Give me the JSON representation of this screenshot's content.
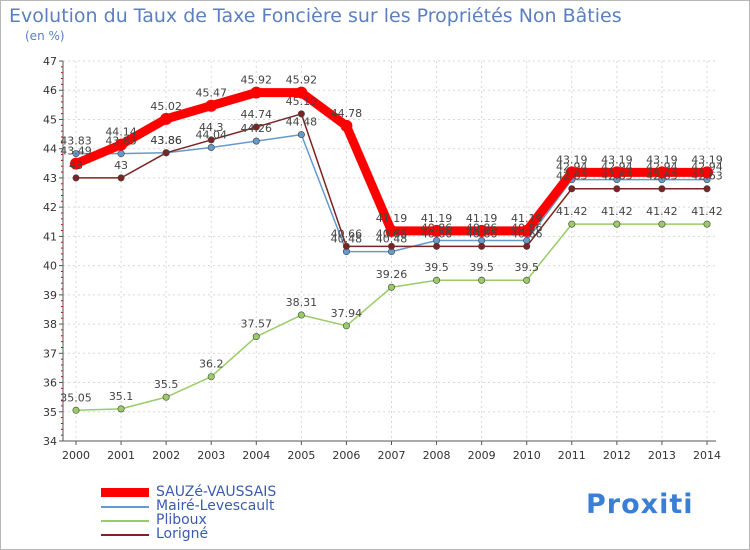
{
  "chart_data": {
    "type": "line",
    "title": "Evolution du Taux de Taxe Foncière sur les Propriétés Non Bâties",
    "subtitle": "(en %)",
    "ylim": [
      34,
      47
    ],
    "yticks": [
      "34",
      "35",
      "36",
      "37",
      "38",
      "39",
      "40",
      "41",
      "42",
      "43",
      "44",
      "45",
      "46",
      "47"
    ],
    "categories": [
      "2000",
      "2001",
      "2002",
      "2003",
      "2004",
      "2005",
      "2006",
      "2007",
      "2008",
      "2009",
      "2010",
      "2011",
      "2012",
      "2013",
      "2014"
    ],
    "series": [
      {
        "name": "SAUZé-VAUSSAIS",
        "color": "#ff0000",
        "values": [
          43.49,
          44.14,
          45.02,
          45.47,
          45.92,
          45.92,
          44.78,
          41.19,
          41.19,
          41.19,
          41.19,
          43.19,
          43.19,
          43.19,
          43.19
        ],
        "labels": [
          "43.49",
          "44.14",
          "45.02",
          "45.47",
          "45.92",
          "45.92",
          "44.78",
          "41.19",
          "41.19",
          "41.19",
          "41.19",
          "43.19",
          "43.19",
          "43.19",
          "43.19"
        ]
      },
      {
        "name": "Mairé-Levescault",
        "color": "#6699cc",
        "values": [
          43.83,
          43.83,
          43.86,
          44.04,
          44.26,
          44.48,
          40.48,
          40.48,
          40.86,
          40.86,
          40.86,
          42.94,
          42.94,
          42.94,
          42.94
        ],
        "labels": [
          "43.83",
          "43.83",
          "43.86",
          "44.04",
          "44.26",
          "44.48",
          "40.48",
          "40.48",
          "40.86",
          "40.86",
          "40.86",
          "42.94",
          "42.94",
          "42.94",
          "42.94"
        ]
      },
      {
        "name": "Pliboux",
        "color": "#99cc66",
        "values": [
          35.05,
          35.1,
          35.5,
          36.2,
          37.57,
          38.31,
          37.94,
          39.26,
          39.5,
          39.5,
          39.5,
          41.42,
          41.42,
          41.42,
          41.42
        ],
        "labels": [
          "35.05",
          "35.1",
          "35.5",
          "36.2",
          "37.57",
          "38.31",
          "37.94",
          "39.26",
          "39.5",
          "39.5",
          "39.5",
          "41.42",
          "41.42",
          "41.42",
          "41.42"
        ]
      },
      {
        "name": "Lorigné",
        "color": "#7b2424",
        "values": [
          43,
          43,
          43.86,
          44.3,
          44.74,
          45.19,
          40.66,
          40.66,
          40.66,
          40.66,
          40.66,
          42.63,
          42.63,
          42.63,
          42.63
        ],
        "labels": [
          "43",
          "43",
          "43.86",
          "44.3",
          "44.74",
          "45.19",
          "40.66",
          "40.66",
          "40.66",
          "40.66",
          "40.66",
          "42.63",
          "42.63",
          "42.63",
          "42.63"
        ]
      }
    ]
  },
  "logo": {
    "text": "Proxiti"
  }
}
